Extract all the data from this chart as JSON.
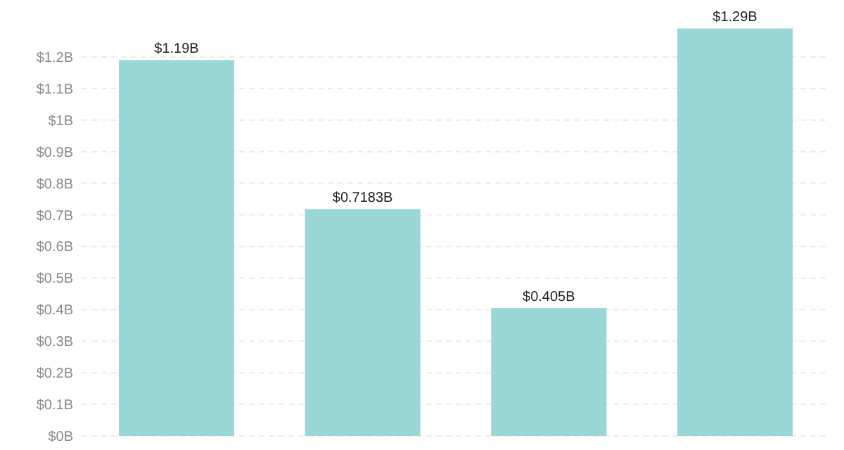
{
  "chart_data": {
    "type": "bar",
    "categories": [
      null,
      null,
      null,
      null
    ],
    "values": [
      1.19,
      0.7183,
      0.405,
      1.29
    ],
    "color": "#99d8d6",
    "value_labels": [
      "$1.19B",
      "$0.7183B",
      "$0.405B",
      "$1.29B"
    ],
    "ylim": [
      0,
      1.3
    ],
    "yticks": [
      {
        "value": 0,
        "label": "$0B"
      },
      {
        "value": 0.1,
        "label": "$0.1B"
      },
      {
        "value": 0.2,
        "label": "$0.2B"
      },
      {
        "value": 0.3,
        "label": "$0.3B"
      },
      {
        "value": 0.4,
        "label": "$0.4B"
      },
      {
        "value": 0.5,
        "label": "$0.5B"
      },
      {
        "value": 0.6,
        "label": "$0.6B"
      },
      {
        "value": 0.7,
        "label": "$0.7B"
      },
      {
        "value": 0.8,
        "label": "$0.8B"
      },
      {
        "value": 0.9,
        "label": "$0.9B"
      },
      {
        "value": 1,
        "label": "$1B"
      },
      {
        "value": 1.1,
        "label": "$1.1B"
      },
      {
        "value": 1.2,
        "label": "$1.2B"
      }
    ],
    "grid": "y"
  }
}
